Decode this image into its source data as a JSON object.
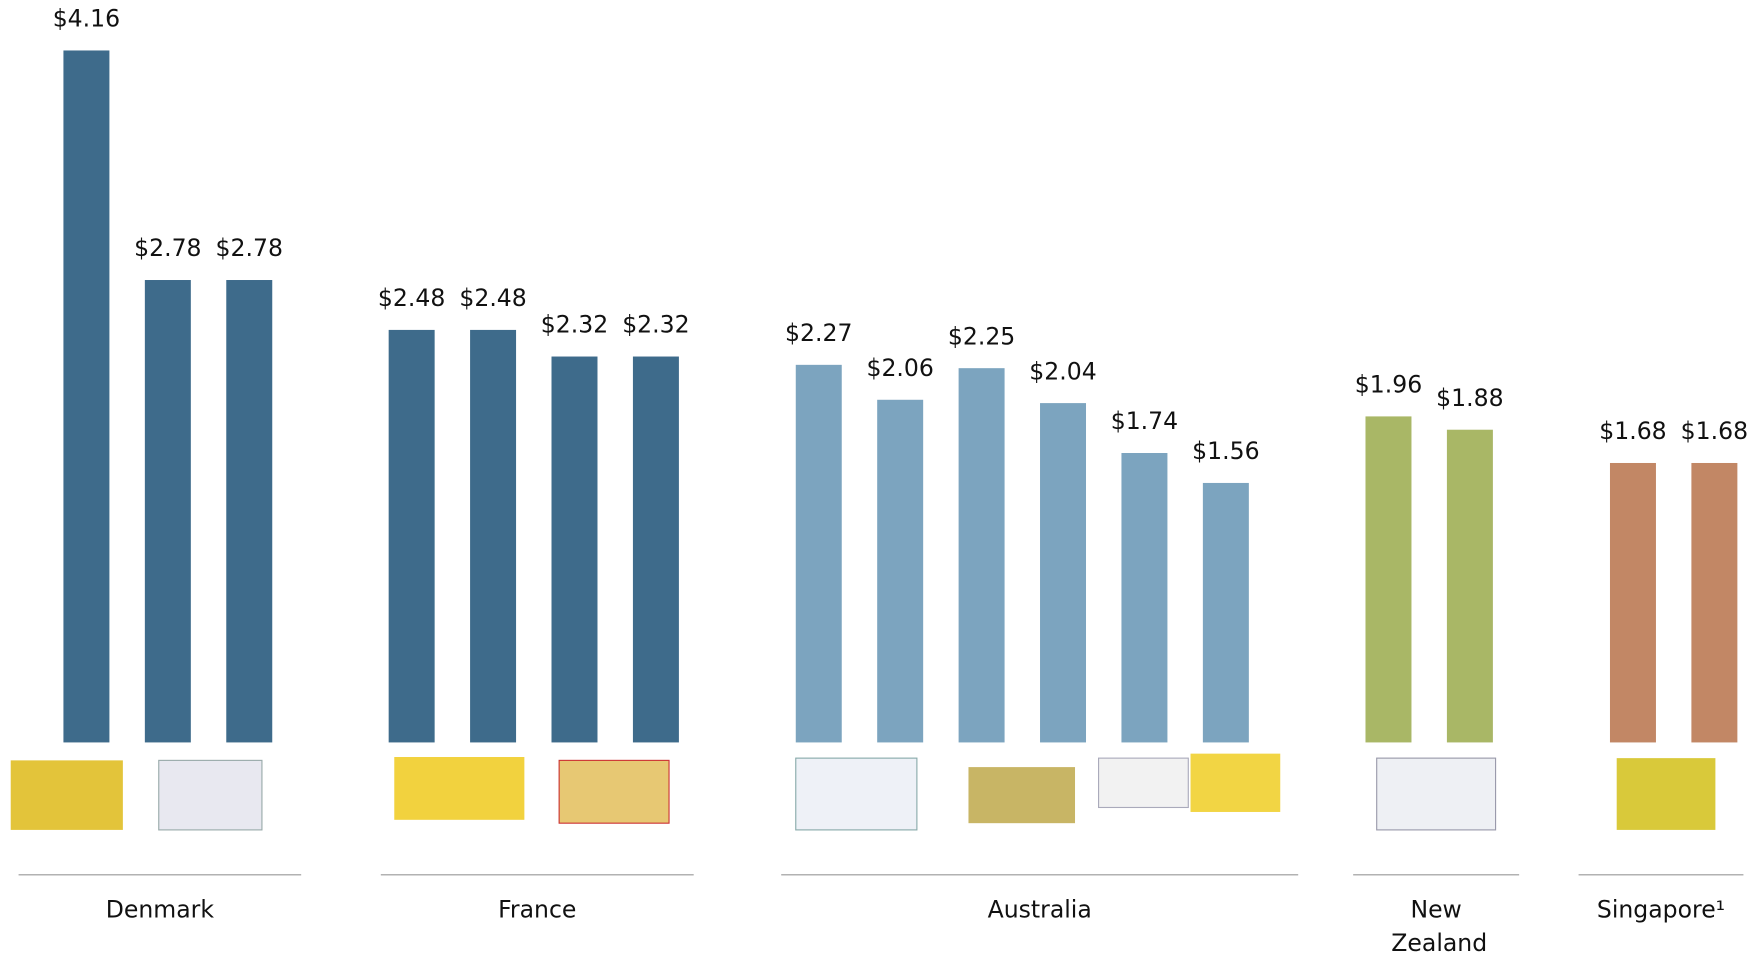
{
  "chart_data": {
    "type": "bar",
    "groups": [
      {
        "name": "Denmark",
        "color": "#3e6b8b",
        "values": [
          4.16,
          2.78,
          2.78
        ],
        "value_labels": [
          "$4.16",
          "$2.78",
          "$2.78"
        ]
      },
      {
        "name": "France",
        "color": "#3e6b8b",
        "values": [
          2.48,
          2.48,
          2.32,
          2.32
        ],
        "value_labels": [
          "$2.48",
          "$2.48",
          "$2.32",
          "$2.32"
        ]
      },
      {
        "name": "Australia",
        "color": "#7ca4bf",
        "values": [
          2.27,
          2.06,
          2.25,
          2.04,
          1.74,
          1.56
        ],
        "value_labels": [
          "$2.27",
          "$2.06",
          "$2.25",
          "$2.04",
          "$1.74",
          "$1.56"
        ]
      },
      {
        "name": "New Zealand",
        "color": "#a9b766",
        "values": [
          1.96,
          1.88
        ],
        "value_labels": [
          "$1.96",
          "$1.88"
        ]
      },
      {
        "name": "Singapore¹",
        "color": "#c28765",
        "values": [
          1.68,
          1.68
        ],
        "value_labels": [
          "$1.68",
          "$1.68"
        ]
      }
    ]
  }
}
